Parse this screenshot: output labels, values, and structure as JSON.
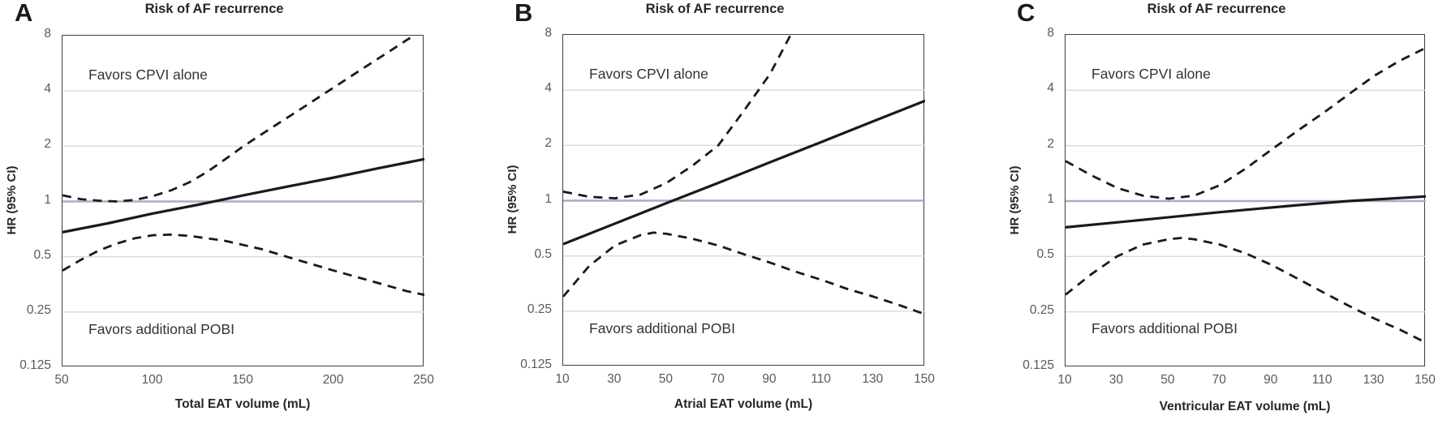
{
  "figure": {
    "panels": [
      {
        "label": "A",
        "title": "Risk of AF recurrence",
        "y_axis_label": "HR (95% CI)",
        "x_axis_label": "Total EAT volume (mL)",
        "annotation_top": "Favors CPVI alone",
        "annotation_bottom": "Favors additional POBI"
      },
      {
        "label": "B",
        "title": "Risk of AF recurrence",
        "y_axis_label": "HR (95% CI)",
        "x_axis_label": "Atrial EAT volume (mL)",
        "annotation_top": "Favors CPVI alone",
        "annotation_bottom": "Favors additional POBI"
      },
      {
        "label": "C",
        "title": "Risk of AF recurrence",
        "y_axis_label": "HR (95% CI)",
        "x_axis_label": "Ventricular EAT volume (mL)",
        "annotation_top": "Favors CPVI alone",
        "annotation_bottom": "Favors additional POBI"
      }
    ]
  },
  "colors": {
    "curve": "#1a1a1a",
    "gridline": "#d9d9d9",
    "reference_line": "#b3a6c5",
    "tick_text": "#595959",
    "text": "#262626",
    "border": "#3e3e3e"
  },
  "chart_data": [
    {
      "type": "line",
      "title": "Risk of AF recurrence",
      "xlabel": "Total EAT volume (mL)",
      "ylabel": "HR (95% CI)",
      "xlim": [
        50,
        250
      ],
      "ylim": [
        0.125,
        8
      ],
      "y_scale": "log2",
      "x_ticks": [
        50,
        100,
        150,
        200,
        250
      ],
      "y_ticks": [
        8,
        4,
        2,
        1,
        0.5,
        0.25,
        0.125
      ],
      "reference_line_y": 1,
      "grid": true,
      "legend": "none",
      "annotations": [
        "Favors CPVI alone",
        "Favors additional POBI"
      ],
      "series": [
        {
          "name": "Upper 95% CI",
          "style": "dashed",
          "x": [
            50,
            60,
            70,
            80,
            90,
            100,
            110,
            120,
            130,
            140,
            150,
            160,
            170,
            180,
            190,
            200,
            210,
            220,
            230,
            240,
            244
          ],
          "y": [
            1.08,
            1.03,
            1.01,
            1.0,
            1.02,
            1.07,
            1.15,
            1.27,
            1.45,
            1.7,
            2.0,
            2.32,
            2.69,
            3.11,
            3.61,
            4.18,
            4.85,
            5.62,
            6.51,
            7.55,
            8.0
          ]
        },
        {
          "name": "Lower 95% CI",
          "style": "dashed",
          "x": [
            50,
            60,
            70,
            80,
            90,
            100,
            110,
            120,
            140,
            160,
            180,
            200,
            220,
            240,
            250
          ],
          "y": [
            0.42,
            0.48,
            0.54,
            0.59,
            0.63,
            0.655,
            0.66,
            0.65,
            0.61,
            0.55,
            0.48,
            0.42,
            0.37,
            0.325,
            0.31
          ]
        },
        {
          "name": "HR",
          "style": "solid",
          "x": [
            50,
            75,
            100,
            125,
            150,
            175,
            200,
            225,
            250
          ],
          "y": [
            0.68,
            0.76,
            0.86,
            0.96,
            1.08,
            1.21,
            1.35,
            1.52,
            1.7
          ]
        }
      ]
    },
    {
      "type": "line",
      "title": "Risk of AF recurrence",
      "xlabel": "Atrial EAT volume (mL)",
      "ylabel": "HR (95% CI)",
      "xlim": [
        10,
        150
      ],
      "ylim": [
        0.125,
        8
      ],
      "y_scale": "log2",
      "x_ticks": [
        10,
        30,
        50,
        70,
        90,
        110,
        130,
        150
      ],
      "y_ticks": [
        8,
        4,
        2,
        1,
        0.5,
        0.25,
        0.125
      ],
      "reference_line_y": 1,
      "grid": true,
      "legend": "none",
      "annotations": [
        "Favors CPVI alone",
        "Favors additional POBI"
      ],
      "series": [
        {
          "name": "Upper 95% CI",
          "style": "dashed",
          "x": [
            10,
            20,
            30,
            40,
            50,
            60,
            70,
            80,
            90,
            98
          ],
          "y": [
            1.12,
            1.05,
            1.03,
            1.08,
            1.25,
            1.55,
            2.0,
            3.1,
            4.9,
            8.0
          ]
        },
        {
          "name": "Lower 95% CI",
          "style": "dashed",
          "x": [
            10,
            20,
            30,
            40,
            45,
            50,
            60,
            70,
            80,
            90,
            100,
            110,
            120,
            130,
            140,
            150
          ],
          "y": [
            0.3,
            0.44,
            0.57,
            0.65,
            0.67,
            0.66,
            0.62,
            0.57,
            0.51,
            0.46,
            0.41,
            0.37,
            0.33,
            0.3,
            0.27,
            0.24
          ]
        },
        {
          "name": "HR",
          "style": "solid",
          "x": [
            10,
            30,
            50,
            70,
            90,
            110,
            130,
            150
          ],
          "y": [
            0.58,
            0.75,
            0.97,
            1.25,
            1.62,
            2.09,
            2.71,
            3.5
          ]
        }
      ]
    },
    {
      "type": "line",
      "title": "Risk of AF recurrence",
      "xlabel": "Ventricular EAT volume (mL)",
      "ylabel": "HR (95% CI)",
      "xlim": [
        10,
        150
      ],
      "ylim": [
        0.125,
        8
      ],
      "y_scale": "log2",
      "x_ticks": [
        10,
        30,
        50,
        70,
        90,
        110,
        130,
        150
      ],
      "y_ticks": [
        8,
        4,
        2,
        1,
        0.5,
        0.25,
        0.125
      ],
      "reference_line_y": 1,
      "grid": true,
      "legend": "none",
      "annotations": [
        "Favors CPVI alone",
        "Favors additional POBI"
      ],
      "series": [
        {
          "name": "Upper 95% CI",
          "style": "dashed",
          "x": [
            10,
            20,
            30,
            40,
            50,
            60,
            70,
            80,
            90,
            100,
            110,
            120,
            130,
            140,
            150
          ],
          "y": [
            1.65,
            1.38,
            1.18,
            1.07,
            1.03,
            1.07,
            1.22,
            1.5,
            1.9,
            2.4,
            3.0,
            3.8,
            4.8,
            5.8,
            6.8
          ]
        },
        {
          "name": "Lower 95% CI",
          "style": "dashed",
          "x": [
            10,
            20,
            30,
            40,
            50,
            55,
            60,
            70,
            80,
            90,
            100,
            110,
            120,
            130,
            140,
            150
          ],
          "y": [
            0.31,
            0.4,
            0.5,
            0.58,
            0.62,
            0.63,
            0.62,
            0.58,
            0.52,
            0.45,
            0.38,
            0.32,
            0.27,
            0.23,
            0.2,
            0.17
          ]
        },
        {
          "name": "HR",
          "style": "solid",
          "x": [
            10,
            40,
            70,
            100,
            120,
            150
          ],
          "y": [
            0.72,
            0.79,
            0.87,
            0.95,
            1.0,
            1.06
          ]
        }
      ]
    }
  ]
}
